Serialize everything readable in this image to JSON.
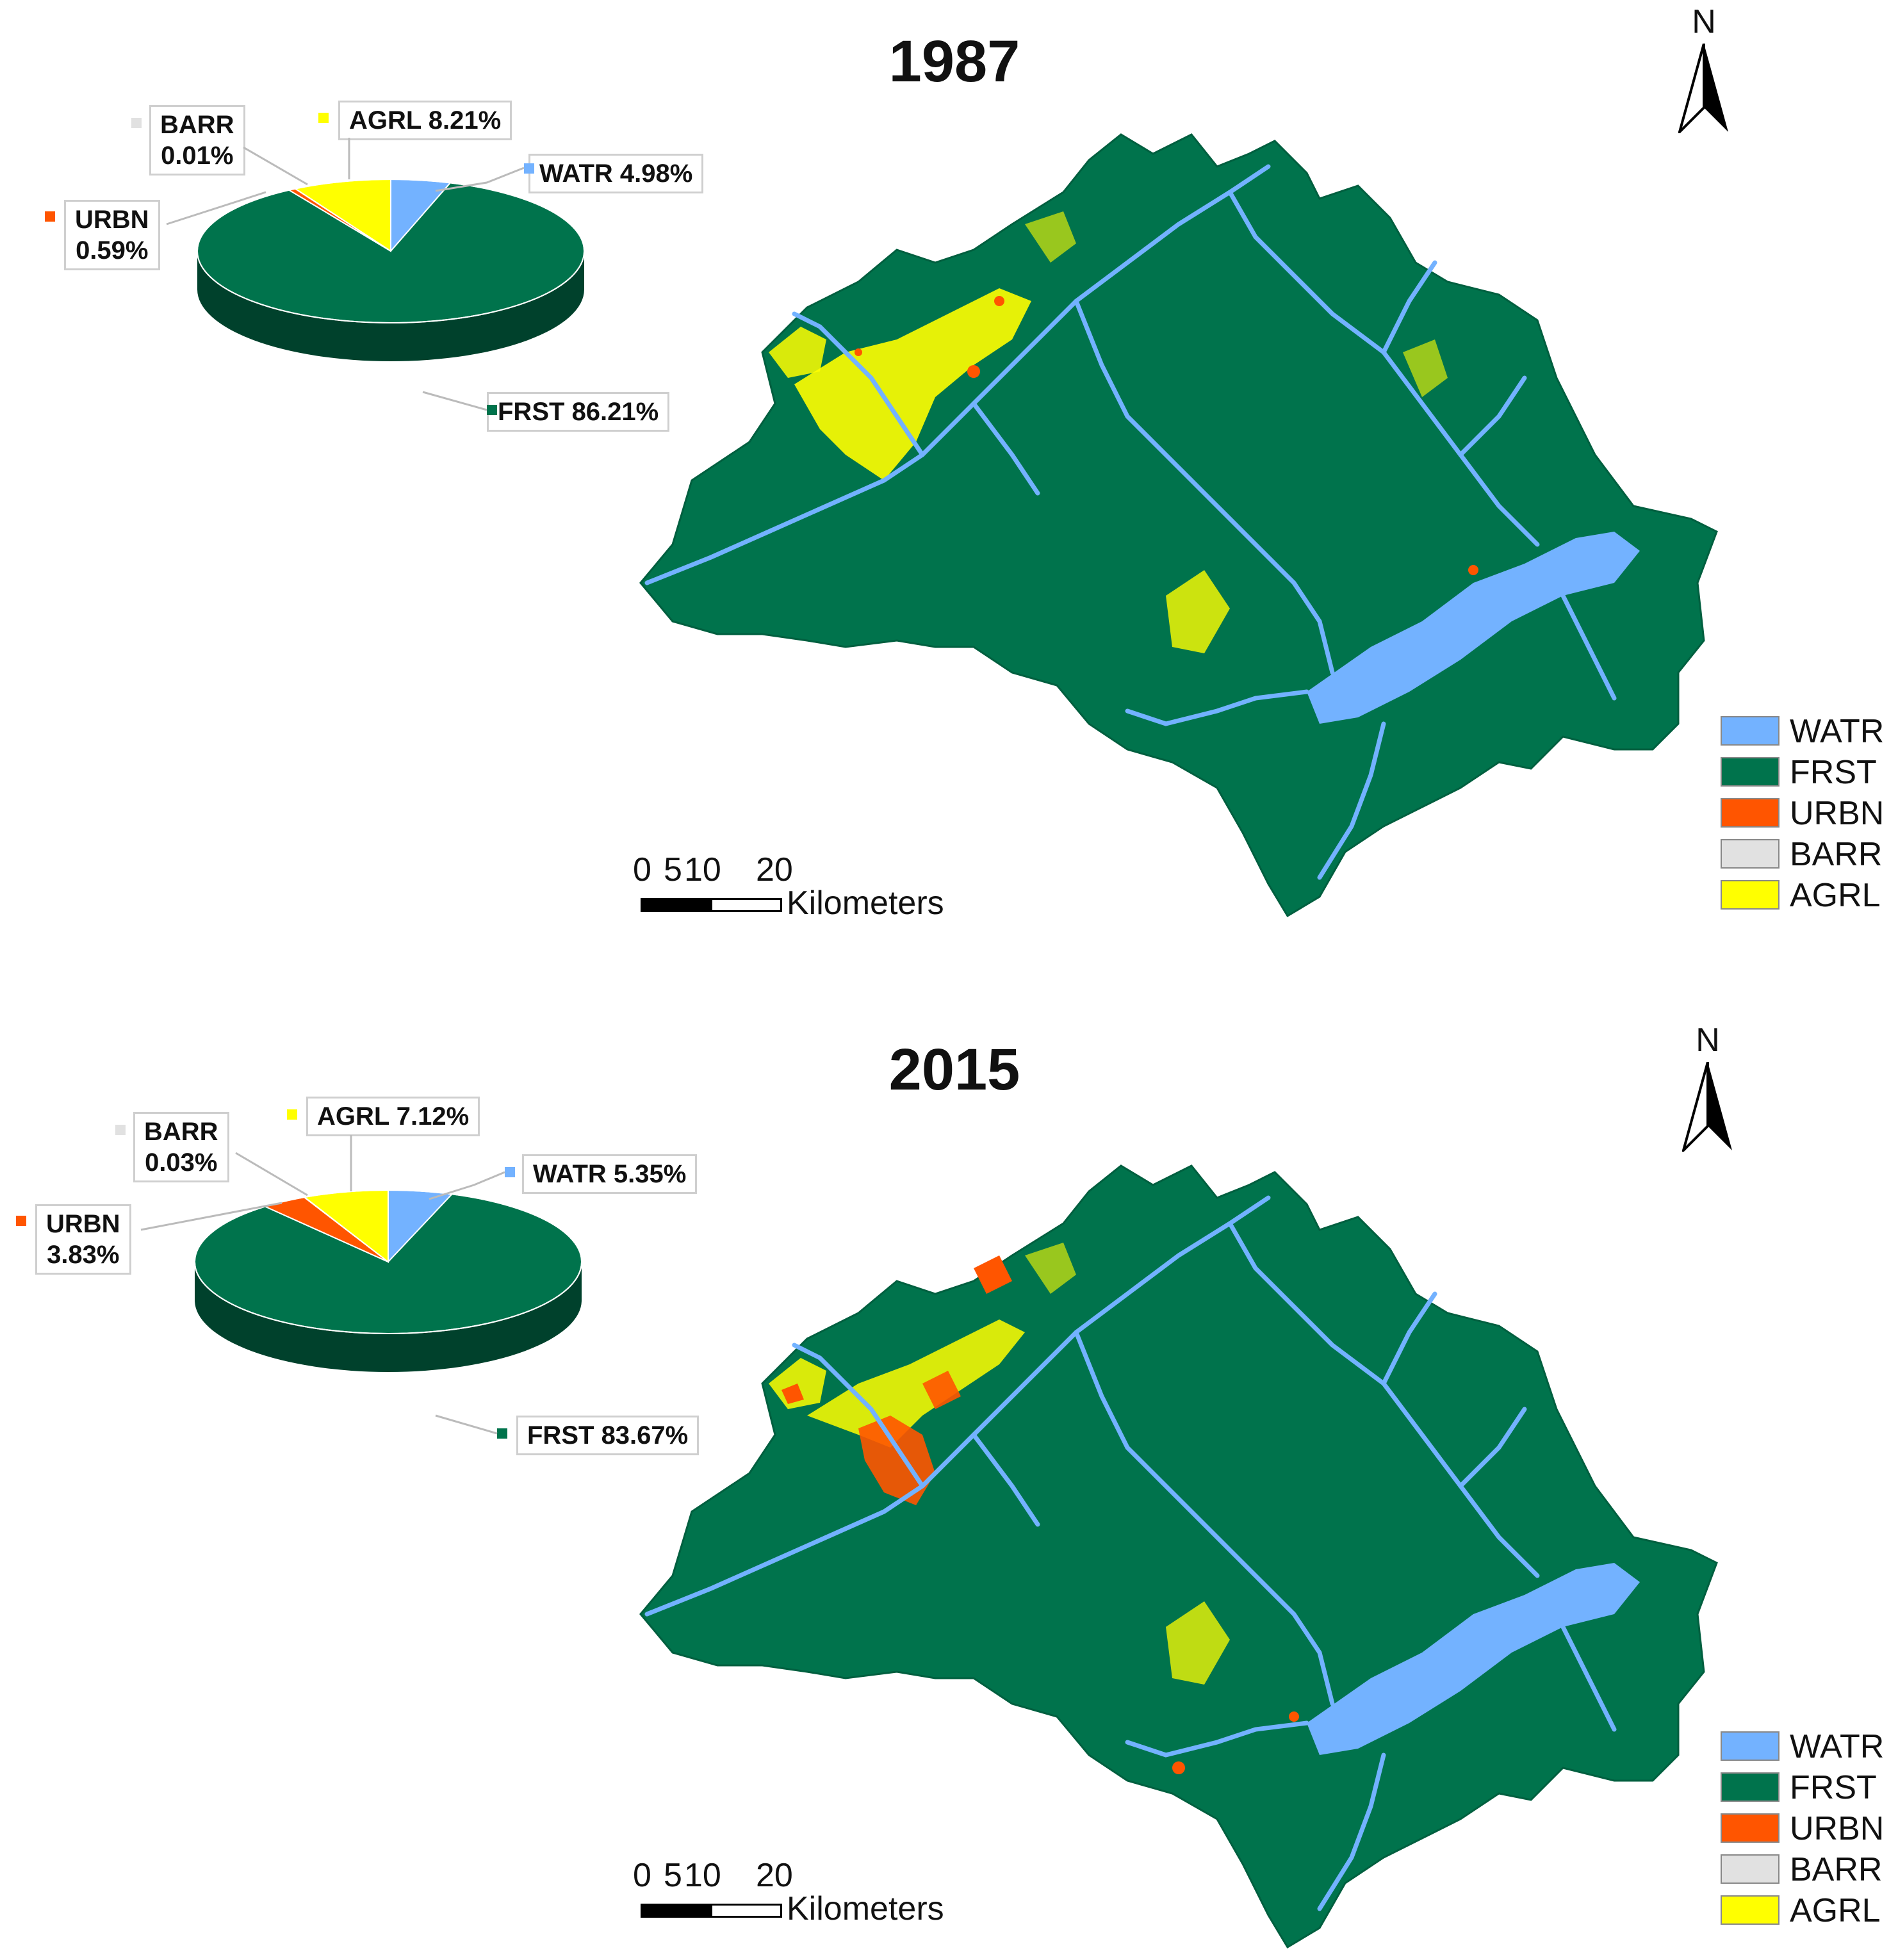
{
  "colors": {
    "WATR": "#73b2ff",
    "FRST": "#00734c",
    "FRST_dark": "#00563a",
    "URBN": "#ff5500",
    "BARR": "#e1e1e1",
    "AGRL": "#ffff00",
    "label_border": "#cfcfcf"
  },
  "north_arrow": {
    "letter": "N"
  },
  "scalebar": {
    "ticks": [
      "0",
      "5",
      "10",
      "20"
    ],
    "unit": "Kilometers"
  },
  "legend": [
    {
      "code": "WATR",
      "label": "WATR"
    },
    {
      "code": "FRST",
      "label": "FRST"
    },
    {
      "code": "URBN",
      "label": "URBN"
    },
    {
      "code": "BARR",
      "label": "BARR"
    },
    {
      "code": "AGRL",
      "label": "AGRL"
    }
  ],
  "panels": [
    {
      "year": "1987",
      "pie": [
        {
          "code": "WATR",
          "label": "WATR",
          "percent": 4.98,
          "percent_text": "4.98%"
        },
        {
          "code": "FRST",
          "label": "FRST",
          "percent": 86.21,
          "percent_text": "86.21%"
        },
        {
          "code": "URBN",
          "label": "URBN",
          "percent": 0.59,
          "percent_text": "0.59%"
        },
        {
          "code": "BARR",
          "label": "BARR",
          "percent": 0.01,
          "percent_text": "0.01%"
        },
        {
          "code": "AGRL",
          "label": "AGRL",
          "percent": 8.21,
          "percent_text": "8.21%"
        }
      ]
    },
    {
      "year": "2015",
      "pie": [
        {
          "code": "WATR",
          "label": "WATR",
          "percent": 5.35,
          "percent_text": "5.35%"
        },
        {
          "code": "FRST",
          "label": "FRST",
          "percent": 83.67,
          "percent_text": "83.67%"
        },
        {
          "code": "URBN",
          "label": "URBN",
          "percent": 3.83,
          "percent_text": "3.83%"
        },
        {
          "code": "BARR",
          "label": "BARR",
          "percent": 0.03,
          "percent_text": "0.03%"
        },
        {
          "code": "AGRL",
          "label": "AGRL",
          "percent": 7.12,
          "percent_text": "7.12%"
        }
      ]
    }
  ],
  "chart_data": [
    {
      "type": "pie",
      "title": "1987",
      "categories": [
        "WATR",
        "FRST",
        "URBN",
        "BARR",
        "AGRL"
      ],
      "values": [
        4.98,
        86.21,
        0.59,
        0.01,
        8.21
      ]
    },
    {
      "type": "pie",
      "title": "2015",
      "categories": [
        "WATR",
        "FRST",
        "URBN",
        "BARR",
        "AGRL"
      ],
      "values": [
        5.35,
        83.67,
        3.83,
        0.03,
        7.12
      ]
    }
  ]
}
